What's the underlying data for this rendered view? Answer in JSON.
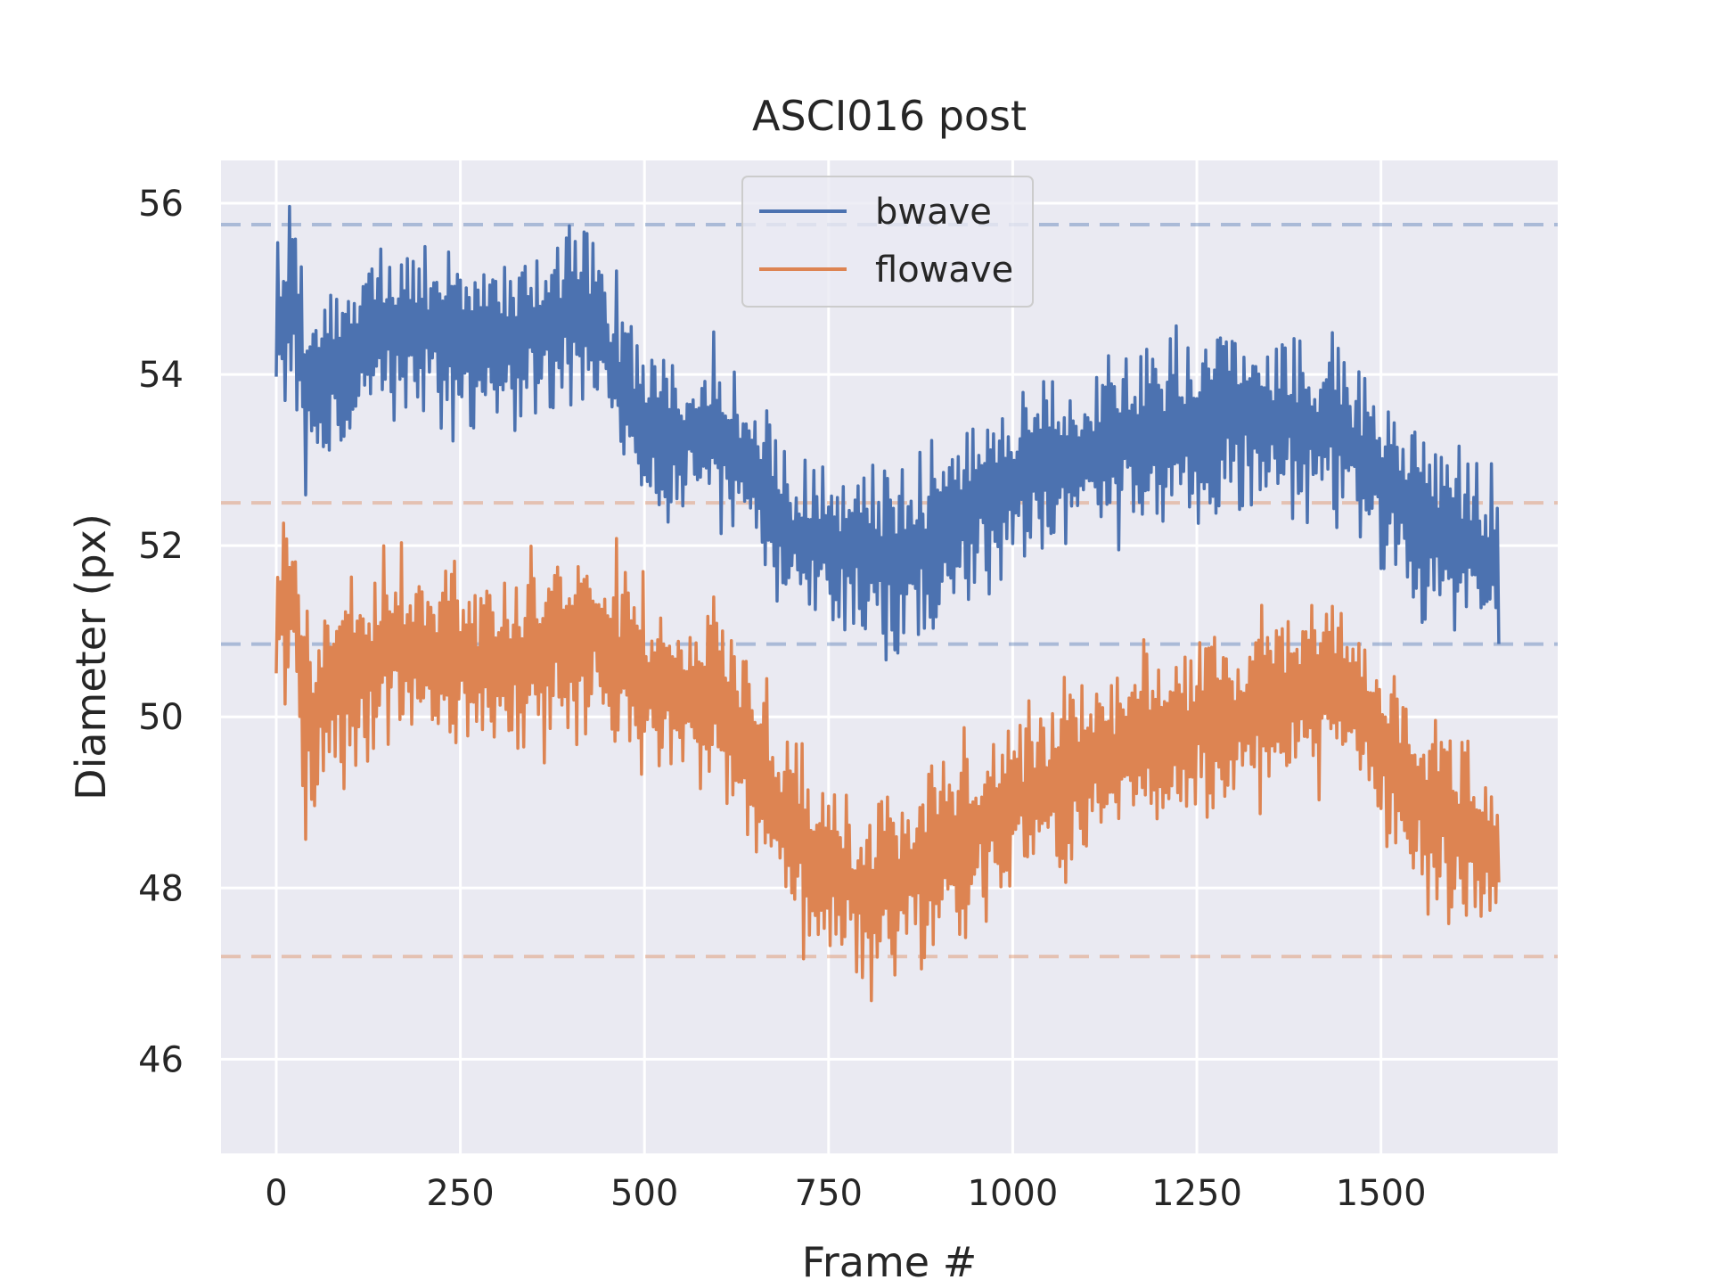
{
  "chart_data": {
    "type": "line",
    "title": "ASCI016 post",
    "xlabel": "Frame #",
    "ylabel": "Diameter (px)",
    "xlim": [
      -75,
      1740
    ],
    "ylim": [
      44.9,
      56.5
    ],
    "x_ticks": [
      0,
      250,
      500,
      750,
      1000,
      1250,
      1500
    ],
    "y_ticks": [
      46,
      48,
      50,
      52,
      54,
      56
    ],
    "grid": true,
    "legend_position": "top-center",
    "background": "#eaeaf2",
    "series": [
      {
        "name": "bwave",
        "color": "#4c72b0",
        "n_frames": 1660,
        "anchors": [
          [
            0,
            54.3
          ],
          [
            25,
            55.0
          ],
          [
            40,
            53.8
          ],
          [
            150,
            54.6
          ],
          [
            300,
            54.4
          ],
          [
            430,
            54.7
          ],
          [
            500,
            53.2
          ],
          [
            600,
            53.4
          ],
          [
            700,
            52.1
          ],
          [
            850,
            51.8
          ],
          [
            1000,
            52.8
          ],
          [
            1150,
            53.2
          ],
          [
            1300,
            53.6
          ],
          [
            1450,
            53.3
          ],
          [
            1550,
            52.3
          ],
          [
            1660,
            51.8
          ]
        ],
        "amplitude": 1.3,
        "upper_threshold": 55.75,
        "lower_threshold": 50.85
      },
      {
        "name": "flowave",
        "color": "#dd8452",
        "n_frames": 1660,
        "anchors": [
          [
            0,
            51.2
          ],
          [
            25,
            51.6
          ],
          [
            40,
            49.9
          ],
          [
            150,
            50.8
          ],
          [
            300,
            50.6
          ],
          [
            430,
            51.0
          ],
          [
            500,
            50.4
          ],
          [
            600,
            50.2
          ],
          [
            700,
            48.6
          ],
          [
            800,
            47.9
          ],
          [
            900,
            48.4
          ],
          [
            1000,
            49.0
          ],
          [
            1150,
            49.6
          ],
          [
            1300,
            50.0
          ],
          [
            1450,
            50.4
          ],
          [
            1550,
            49.0
          ],
          [
            1660,
            48.4
          ]
        ],
        "amplitude": 1.4,
        "upper_threshold": 52.5,
        "lower_threshold": 47.2
      }
    ]
  }
}
